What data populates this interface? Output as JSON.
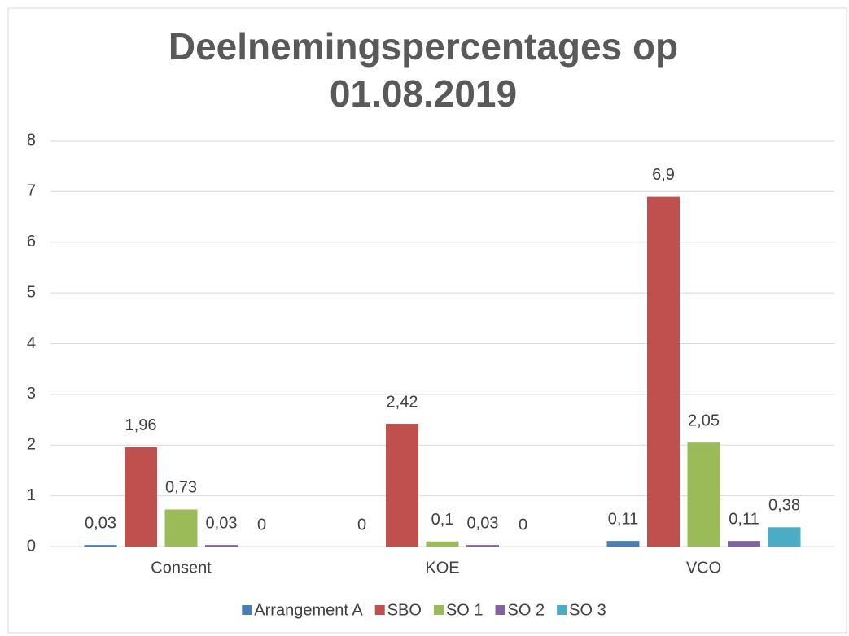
{
  "chart_data": {
    "type": "bar",
    "title": "Deelnemingspercentages op 01.08.2019",
    "categories": [
      "Consent",
      "KOE",
      "VCO"
    ],
    "series": [
      {
        "name": "Arrangement A",
        "color": "#4a7ebb",
        "values": [
          0.03,
          0,
          0.11
        ],
        "value_labels": [
          "0,03",
          "0",
          "0,11"
        ]
      },
      {
        "name": "SBO",
        "color": "#c0504d",
        "values": [
          1.96,
          2.42,
          6.9
        ],
        "value_labels": [
          "1,96",
          "2,42",
          "6,9"
        ]
      },
      {
        "name": "SO 1",
        "color": "#9bbb59",
        "values": [
          0.73,
          0.1,
          2.05
        ],
        "value_labels": [
          "0,73",
          "0,1",
          "2,05"
        ]
      },
      {
        "name": "SO 2",
        "color": "#8064a2",
        "values": [
          0.03,
          0.03,
          0.11
        ],
        "value_labels": [
          "0,03",
          "0,03",
          "0,11"
        ]
      },
      {
        "name": "SO 3",
        "color": "#4bacc6",
        "values": [
          0,
          0,
          0.38
        ],
        "value_labels": [
          "0",
          "0",
          "0,38"
        ]
      }
    ],
    "ylim": [
      0,
      8
    ],
    "yticks": [
      0,
      1,
      2,
      3,
      4,
      5,
      6,
      7,
      8
    ],
    "grid": true,
    "legend": "bottom"
  }
}
